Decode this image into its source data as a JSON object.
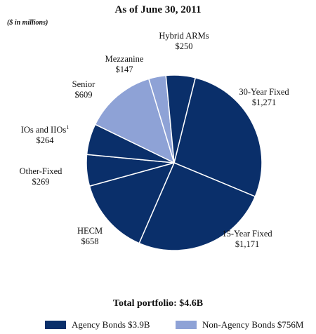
{
  "chart_data": {
    "type": "pie",
    "title": "As of June 30, 2011",
    "unit_note": "($ in millions)",
    "total_label": "Total portfolio: $4.6B",
    "slices": [
      {
        "label": "30-Year Fixed",
        "value_label": "$1,271",
        "value": 1271,
        "group": 0
      },
      {
        "label": "15-Year Fixed",
        "value_label": "$1,171",
        "value": 1171,
        "group": 0
      },
      {
        "label": "HECM",
        "value_label": "$658",
        "value": 658,
        "group": 0
      },
      {
        "label": "Other-Fixed",
        "value_label": "$269",
        "value": 269,
        "group": 0
      },
      {
        "label": "IOs and IIOs",
        "superscript": "1",
        "value_label": "$264",
        "value": 264,
        "group": 0
      },
      {
        "label": "Senior",
        "value_label": "$609",
        "value": 609,
        "group": 1
      },
      {
        "label": "Mezzanine",
        "value_label": "$147",
        "value": 147,
        "group": 1
      },
      {
        "label": "Hybrid ARMs",
        "value_label": "$250",
        "value": 250,
        "group": 0
      }
    ],
    "legend": [
      {
        "label": "Agency Bonds $3.9B",
        "color": "#0a2f6a"
      },
      {
        "label": "Non-Agency Bonds $756M",
        "color": "#8ea2d6"
      }
    ],
    "colors": {
      "agency": "#0a2f6a",
      "non_agency": "#8ea2d6",
      "border": "#ffffff"
    }
  }
}
